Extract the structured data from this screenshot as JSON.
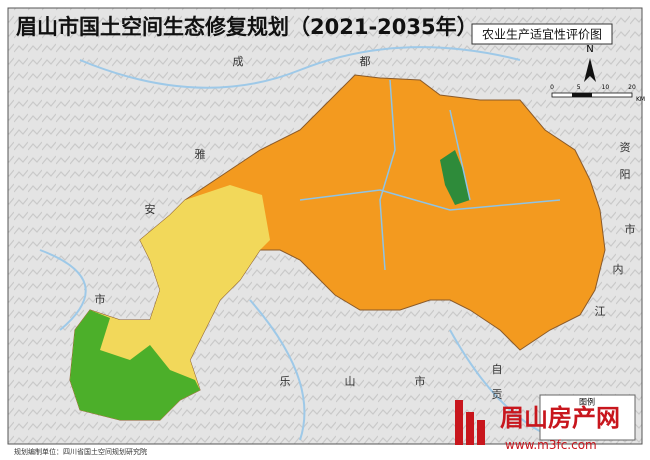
{
  "header": {
    "title": "眉山市国土空间生态修复规划（2021-2035年）",
    "subtitle": "农业生产适宜性评价图"
  },
  "map": {
    "place_labels": [
      "成",
      "都",
      "雅",
      "安",
      "市",
      "资",
      "阳",
      "市",
      "内",
      "江",
      "乐",
      "山",
      "市",
      "自",
      "贡"
    ],
    "north": "N",
    "scale_bar": {
      "ticks": [
        "0",
        "5",
        "10",
        "20"
      ],
      "unit": "KM"
    },
    "legend_title": "图例"
  },
  "footer": {
    "producer": "规划编制单位：四川省国土空间规划研究院"
  },
  "watermark": {
    "brand": "眉山房产网",
    "url": "www.m3fc.com"
  }
}
